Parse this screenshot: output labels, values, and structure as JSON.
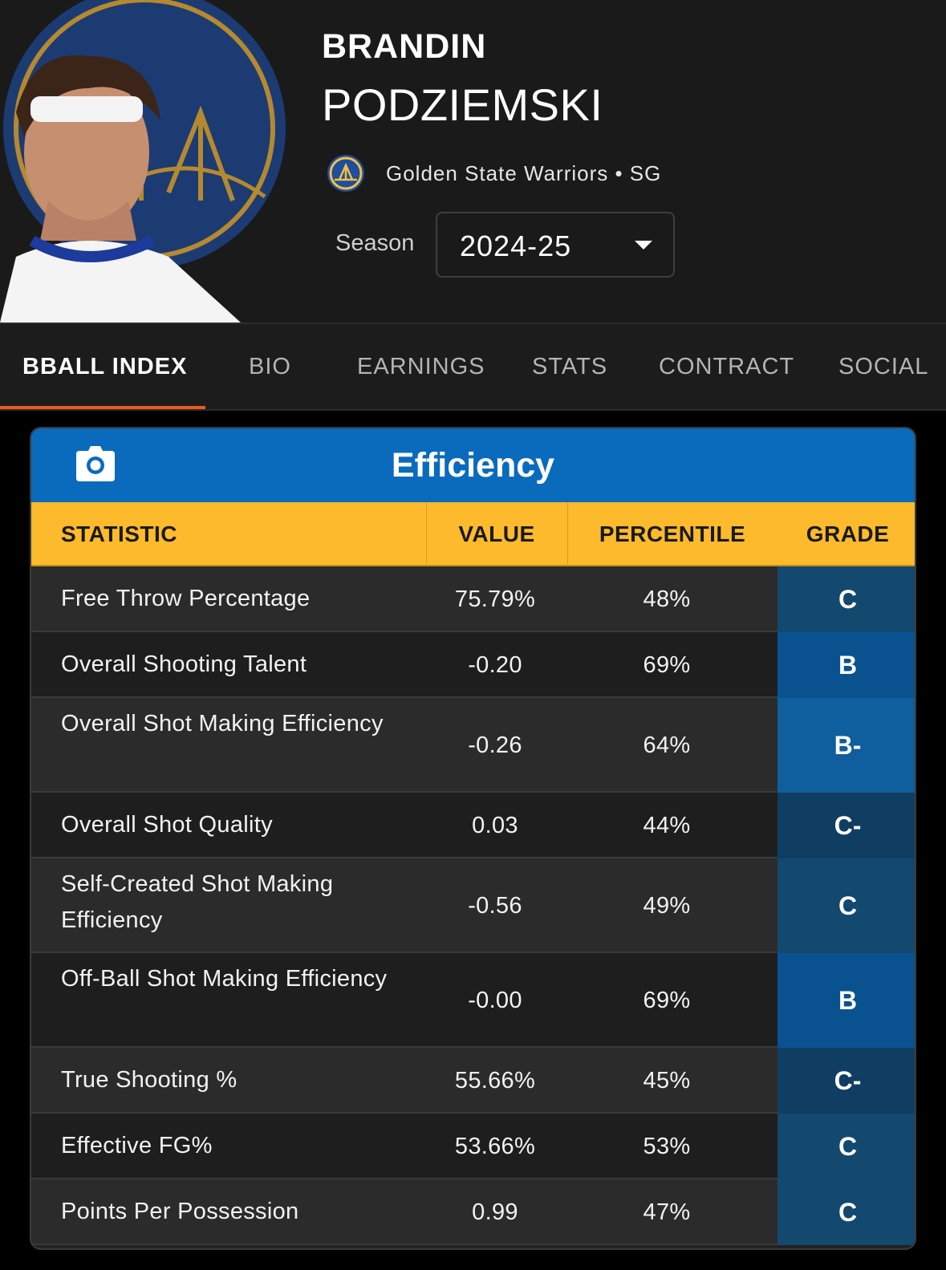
{
  "player": {
    "first_name": "BRANDIN",
    "last_name": "PODZIEMSKI",
    "team_line": "Golden State Warriors • SG",
    "photo": "player-headshot",
    "team_logo": "warriors-logo-icon"
  },
  "season": {
    "label": "Season",
    "value": "2024-25"
  },
  "tabs": [
    {
      "label": "BBALL INDEX",
      "active": true
    },
    {
      "label": "BIO",
      "active": false
    },
    {
      "label": "EARNINGS",
      "active": false
    },
    {
      "label": "STATS",
      "active": false
    },
    {
      "label": "CONTRACT",
      "active": false
    },
    {
      "label": "SOCIAL",
      "active": false
    }
  ],
  "card": {
    "title": "Efficiency",
    "icon": "camera-icon",
    "header_color": "#0a6bbd",
    "table_head_color": "#fdba2c"
  },
  "columns": [
    "STATISTIC",
    "VALUE",
    "PERCENTILE",
    "GRADE"
  ],
  "rows": [
    {
      "statistic": "Free Throw Percentage",
      "value": "75.79%",
      "percentile": "48%",
      "grade": "C"
    },
    {
      "statistic": "Overall Shooting Talent",
      "value": "-0.20",
      "percentile": "69%",
      "grade": "B"
    },
    {
      "statistic": "Overall Shot Making Efficiency",
      "value": "-0.26",
      "percentile": "64%",
      "grade": "B-"
    },
    {
      "statistic": "Overall Shot Quality",
      "value": "0.03",
      "percentile": "44%",
      "grade": "C-"
    },
    {
      "statistic": "Self-Created Shot Making Efficiency",
      "value": "-0.56",
      "percentile": "49%",
      "grade": "C"
    },
    {
      "statistic": "Off-Ball Shot Making Efficiency",
      "value": "-0.00",
      "percentile": "69%",
      "grade": "B"
    },
    {
      "statistic": "True Shooting %",
      "value": "55.66%",
      "percentile": "45%",
      "grade": "C-"
    },
    {
      "statistic": "Effective FG%",
      "value": "53.66%",
      "percentile": "53%",
      "grade": "C"
    },
    {
      "statistic": "Points Per Possession",
      "value": "0.99",
      "percentile": "47%",
      "grade": "C"
    }
  ],
  "grade_colors": {
    "B": "#0a528f",
    "B-": "#0f5e9d",
    "C": "#13486f",
    "C-": "#103e62"
  }
}
